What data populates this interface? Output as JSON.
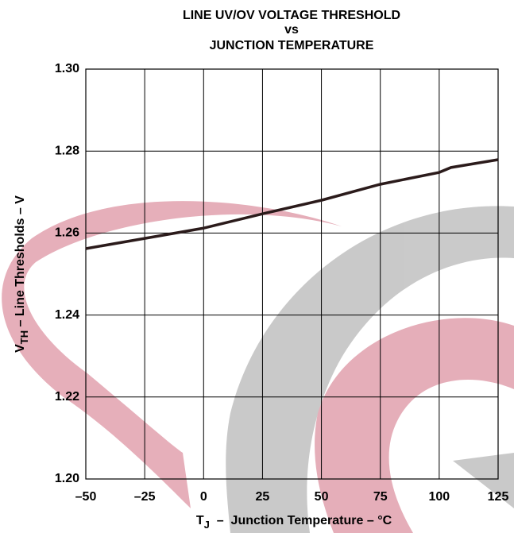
{
  "chart_data": {
    "type": "line",
    "title": [
      "LINE UV/OV VOLTAGE THRESHOLD",
      "vs",
      "JUNCTION TEMPERATURE"
    ],
    "ylabel": [
      "V",
      "TH",
      " – Line Thresholds – V"
    ],
    "xlabel": [
      "T",
      "J",
      "  –  Junction Temperature – °C"
    ],
    "x": [
      -50,
      -25,
      0,
      25,
      50,
      75,
      100,
      105,
      125
    ],
    "series": [
      {
        "color": "#2b1b1b",
        "values": [
          1.2562,
          1.2587,
          1.2612,
          1.2647,
          1.268,
          1.2719,
          1.2748,
          1.276,
          1.2779
        ]
      }
    ],
    "xlim": [
      -50,
      125
    ],
    "xticks": [
      {
        "value": -50,
        "label": "–50"
      },
      {
        "value": -25,
        "label": "–25"
      },
      0,
      25,
      50,
      75,
      100,
      125
    ],
    "ylim": [
      1.2,
      1.3
    ],
    "yticks": [
      {
        "value": 1.2,
        "label": "1.20"
      },
      1.22,
      1.24,
      1.26,
      1.28,
      {
        "value": 1.3,
        "label": "1.30"
      }
    ],
    "grid": true
  }
}
